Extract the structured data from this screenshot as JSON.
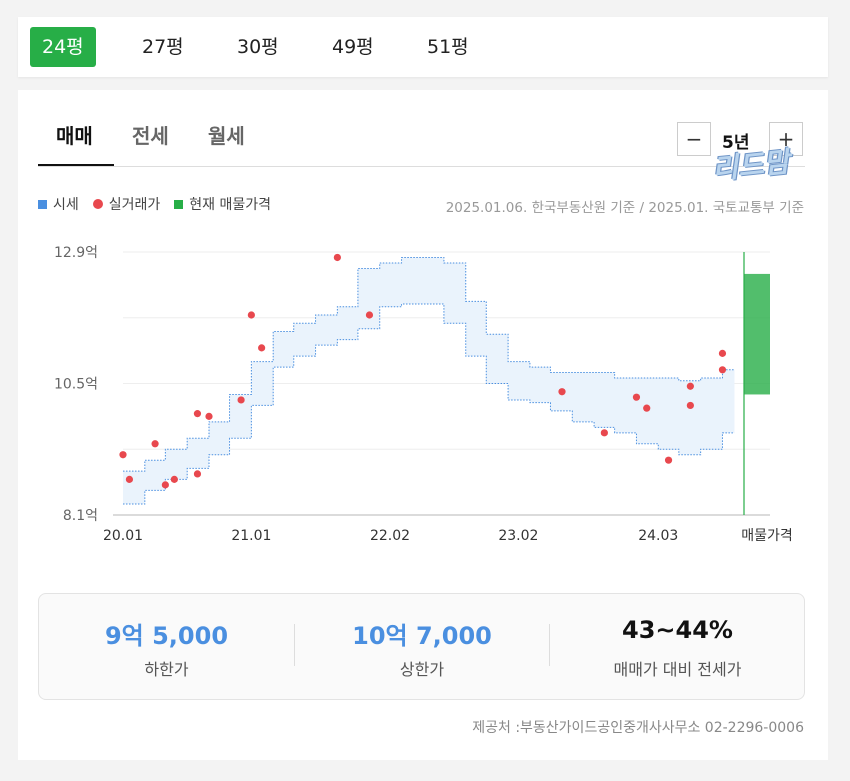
{
  "size_tabs": [
    "24평",
    "27평",
    "30평",
    "49평",
    "51평"
  ],
  "deal_tabs": [
    "매매",
    "전세",
    "월세"
  ],
  "period": {
    "label": "5년",
    "minus": "−",
    "plus": "+"
  },
  "watermark": "리드맘",
  "legend": [
    {
      "label": "시세",
      "color": "#4a8fe0",
      "shape": "square"
    },
    {
      "label": "실거래가",
      "color": "#e8484e",
      "shape": "dot"
    },
    {
      "label": "현재 매물가격",
      "color": "#27ae47",
      "shape": "square"
    }
  ],
  "source_note": "2025.01.06. 한국부동산원 기준 / 2025.01. 국토교통부 기준",
  "chart_data": {
    "type": "line",
    "y_tick_labels": [
      "12.9억",
      "10.5억",
      "8.1억"
    ],
    "y_ticks": [
      12.9,
      10.5,
      8.1
    ],
    "ylim": [
      8.1,
      12.9
    ],
    "x_tick_labels": [
      "20.01",
      "21.01",
      "22.02",
      "23.02",
      "24.03",
      "매물가격"
    ],
    "x_ticks": [
      2020.0,
      2021.0,
      2022.08,
      2023.08,
      2024.17
    ],
    "xlim": [
      2020.0,
      2024.83
    ],
    "series": [
      {
        "name": "시세",
        "kind": "band",
        "color": "#4a8fe0",
        "x": [
          2020.0,
          2020.17,
          2020.33,
          2020.5,
          2020.67,
          2020.83,
          2021.0,
          2021.17,
          2021.33,
          2021.5,
          2021.67,
          2021.83,
          2022.0,
          2022.17,
          2022.33,
          2022.5,
          2022.67,
          2022.83,
          2023.0,
          2023.17,
          2023.33,
          2023.5,
          2023.67,
          2023.83,
          2024.0,
          2024.17,
          2024.33,
          2024.5,
          2024.67
        ],
        "lower": [
          8.3,
          8.55,
          8.75,
          8.95,
          9.2,
          9.5,
          10.1,
          10.8,
          11.0,
          11.2,
          11.3,
          11.5,
          11.9,
          11.95,
          11.95,
          11.6,
          11.0,
          10.5,
          10.2,
          10.15,
          10.0,
          9.8,
          9.7,
          9.6,
          9.4,
          9.3,
          9.2,
          9.3,
          9.6
        ],
        "upper": [
          8.9,
          9.1,
          9.3,
          9.5,
          9.8,
          10.3,
          10.9,
          11.45,
          11.6,
          11.75,
          11.9,
          12.6,
          12.7,
          12.8,
          12.8,
          12.7,
          12.0,
          11.4,
          10.9,
          10.8,
          10.7,
          10.7,
          10.7,
          10.6,
          10.6,
          10.6,
          10.55,
          10.6,
          10.75
        ]
      },
      {
        "name": "실거래가",
        "kind": "scatter",
        "color": "#e8484e",
        "x": [
          2020.0,
          2020.05,
          2020.25,
          2020.33,
          2020.4,
          2020.58,
          2020.58,
          2020.67,
          2020.92,
          2021.0,
          2021.08,
          2021.67,
          2021.92,
          2023.42,
          2023.75,
          2024.0,
          2024.08,
          2024.25,
          2024.42,
          2024.42,
          2024.67,
          2024.67
        ],
        "y": [
          9.2,
          8.75,
          9.4,
          8.65,
          8.75,
          8.85,
          9.95,
          9.9,
          10.2,
          11.75,
          11.15,
          12.8,
          11.75,
          10.35,
          9.6,
          10.25,
          10.05,
          9.1,
          10.1,
          10.45,
          10.75,
          11.05
        ]
      },
      {
        "name": "현재 매물가격",
        "kind": "range",
        "color": "#27ae47",
        "low": 10.3,
        "high": 12.5
      }
    ]
  },
  "summary": [
    {
      "value": "9억 5,000",
      "label": "하한가",
      "color": "#4a8fe0"
    },
    {
      "value": "10억 7,000",
      "label": "상한가",
      "color": "#4a8fe0"
    },
    {
      "value": "43~44%",
      "label": "매매가 대비 전세가",
      "color": "#111111"
    }
  ],
  "provider": "제공처 :부동산가이드공인중개사사무소 02-2296-0006"
}
